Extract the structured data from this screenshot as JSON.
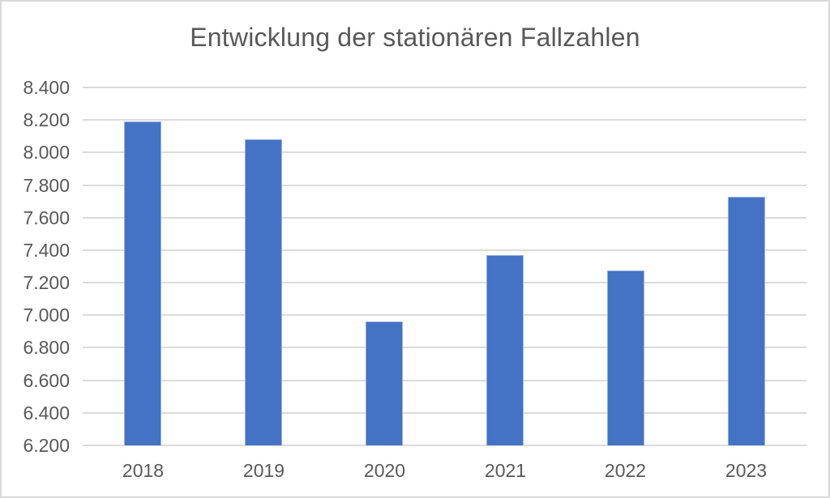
{
  "chart_data": {
    "type": "bar",
    "title": "Entwicklung der stationären Fallzahlen",
    "categories": [
      "2018",
      "2019",
      "2020",
      "2021",
      "2022",
      "2023"
    ],
    "values": [
      8190,
      8080,
      6960,
      7370,
      7275,
      7730
    ],
    "xlabel": "",
    "ylabel": "",
    "ylim": [
      6200,
      8400
    ],
    "ytick_step": 200,
    "ytick_labels_top_to_bottom": [
      "8.400",
      "8.200",
      "8.000",
      "7.800",
      "7.600",
      "7.400",
      "7.200",
      "7.000",
      "6.800",
      "6.600",
      "6.400",
      "6.200"
    ],
    "grid": true,
    "legend": false,
    "colors": {
      "bar_fill": "#4472C4",
      "bar_edge": "#98B2DE",
      "gridline": "#DBDBDB",
      "text": "#595959",
      "background": "#FFFFFF",
      "frame_border": "#D9D9D9"
    }
  }
}
